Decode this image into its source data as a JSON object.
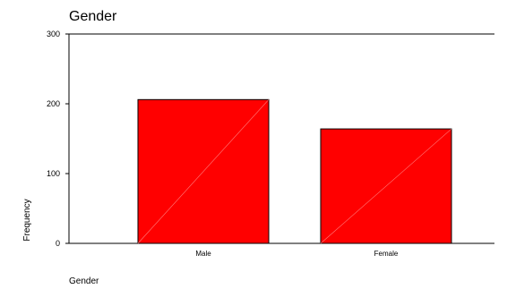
{
  "chart_data": {
    "type": "bar",
    "title": "Gender",
    "xlabel": "Gender",
    "ylabel": "Frequency",
    "categories": [
      "Male",
      "Female"
    ],
    "values": [
      206,
      164
    ],
    "ylim": [
      0,
      300
    ],
    "yticks": [
      0,
      100,
      200,
      300
    ],
    "bar_color": "#ff0000",
    "grid": false
  }
}
